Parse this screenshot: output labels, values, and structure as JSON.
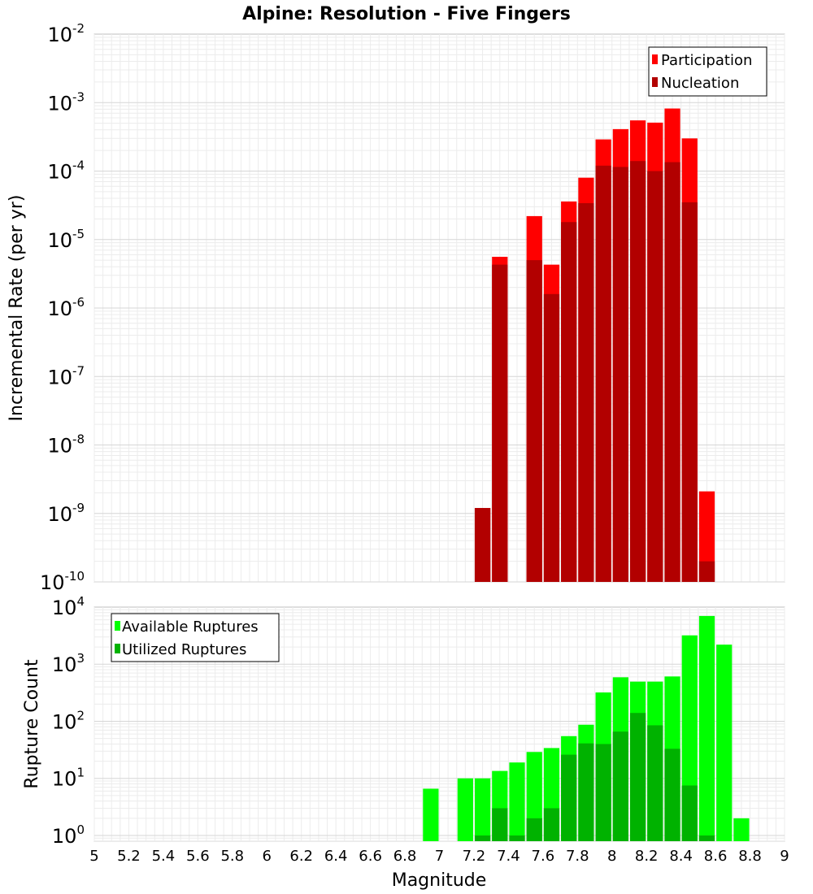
{
  "chart_data": [
    {
      "type": "bar",
      "title": "Alpine: Resolution - Five Fingers",
      "xlabel": "",
      "ylabel": "Incremental Rate (per yr)",
      "yscale": "log",
      "ylim_exponents": [
        -10,
        -2
      ],
      "y_tick_base": "10",
      "y_tick_exponents": [
        "-10",
        "-9",
        "-8",
        "-7",
        "-6",
        "-5",
        "-4",
        "-3",
        "-2"
      ],
      "xlim": [
        5,
        9
      ],
      "bar_width": 0.1,
      "grid": true,
      "legend_position": "top-right",
      "colors": {
        "Participation": "#ff0000",
        "Nucleation": "#b20000"
      },
      "series": [
        {
          "name": "Participation",
          "x": [
            7.25,
            7.35,
            7.55,
            7.65,
            7.75,
            7.85,
            7.95,
            8.05,
            8.15,
            8.25,
            8.35,
            8.45,
            8.55
          ],
          "values": [
            1.2e-09,
            5.6e-06,
            2.2e-05,
            4.3e-06,
            3.6e-05,
            8e-05,
            0.00029,
            0.00041,
            0.00055,
            0.00051,
            0.00082,
            0.0003,
            2.1e-09
          ]
        },
        {
          "name": "Nucleation",
          "x": [
            7.25,
            7.35,
            7.55,
            7.65,
            7.75,
            7.85,
            7.95,
            8.05,
            8.15,
            8.25,
            8.35,
            8.45,
            8.55
          ],
          "values": [
            1.2e-09,
            4.3e-06,
            5e-06,
            1.6e-06,
            1.8e-05,
            3.4e-05,
            0.00012,
            0.000115,
            0.00014,
            0.0001,
            0.000135,
            3.5e-05,
            2e-10
          ]
        }
      ]
    },
    {
      "type": "bar",
      "title": "",
      "xlabel": "Magnitude",
      "ylabel": "Rupture Count",
      "yscale": "log",
      "ylim_exponents": [
        -0.1,
        4
      ],
      "y_tick_base": "10",
      "y_tick_exponents": [
        "0",
        "1",
        "2",
        "3",
        "4"
      ],
      "xlim": [
        5,
        9
      ],
      "x_ticks": [
        "5",
        "5.2",
        "5.4",
        "5.6",
        "5.8",
        "6",
        "6.2",
        "6.4",
        "6.6",
        "6.8",
        "7",
        "7.2",
        "7.4",
        "7.6",
        "7.8",
        "8",
        "8.2",
        "8.4",
        "8.6",
        "8.8",
        "9"
      ],
      "bar_width": 0.1,
      "grid": true,
      "legend_position": "top-left",
      "colors": {
        "Available Ruptures": "#00ff00",
        "Utilized Ruptures": "#00b200"
      },
      "series": [
        {
          "name": "Available Ruptures",
          "x": [
            6.95,
            7.15,
            7.25,
            7.35,
            7.45,
            7.55,
            7.65,
            7.75,
            7.85,
            7.95,
            8.05,
            8.15,
            8.25,
            8.35,
            8.45,
            8.55,
            8.65,
            8.75
          ],
          "values": [
            6.6,
            10,
            10,
            13.5,
            19,
            29,
            34,
            55,
            87,
            320,
            590,
            495,
            495,
            610,
            3200,
            7000,
            2200,
            2
          ]
        },
        {
          "name": "Utilized Ruptures",
          "x": [
            7.25,
            7.35,
            7.45,
            7.55,
            7.65,
            7.75,
            7.85,
            7.95,
            8.05,
            8.15,
            8.25,
            8.35,
            8.45,
            8.55
          ],
          "values": [
            1,
            3,
            1,
            2,
            3,
            26,
            41,
            40,
            66,
            140,
            85,
            33,
            7.5,
            1
          ]
        }
      ]
    }
  ]
}
